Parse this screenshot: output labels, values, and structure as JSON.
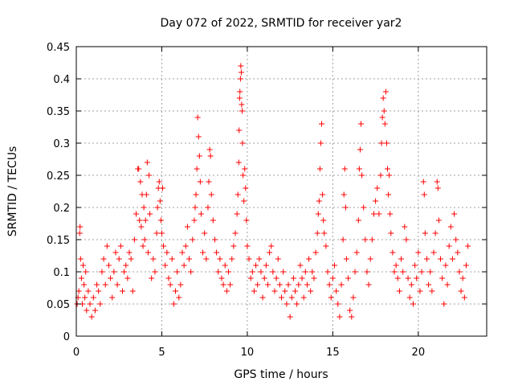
{
  "chart_data": {
    "type": "scatter",
    "title": "Day 072 of 2022, SRMTID for receiver yar2",
    "xlabel": "GPS time / hours",
    "ylabel": "SRMTID / TECUs",
    "xlim": [
      0,
      24
    ],
    "ylim": [
      0,
      0.45
    ],
    "x_ticks": [
      0,
      5,
      10,
      15,
      20
    ],
    "x_tick_labels": [
      "0",
      "5",
      "10",
      "15",
      "20"
    ],
    "y_ticks": [
      0,
      0.05,
      0.1,
      0.15,
      0.2,
      0.25,
      0.3,
      0.35,
      0.4,
      0.45
    ],
    "y_tick_labels": [
      "0",
      "0.05",
      "0.1",
      "0.15",
      "0.2",
      "0.25",
      "0.3",
      "0.35",
      "0.4",
      "0.45"
    ],
    "grid": true,
    "marker": "plus",
    "color": "#ff0000",
    "series": [
      {
        "name": "SRMTID",
        "points": [
          [
            0.05,
            0.05
          ],
          [
            0.1,
            0.06
          ],
          [
            0.15,
            0.07
          ],
          [
            0.2,
            0.16
          ],
          [
            0.22,
            0.17
          ],
          [
            0.25,
            0.12
          ],
          [
            0.3,
            0.09
          ],
          [
            0.35,
            0.05
          ],
          [
            0.4,
            0.11
          ],
          [
            0.45,
            0.08
          ],
          [
            0.5,
            0.06
          ],
          [
            0.55,
            0.1
          ],
          [
            0.6,
            0.04
          ],
          [
            0.7,
            0.07
          ],
          [
            0.8,
            0.05
          ],
          [
            0.9,
            0.03
          ],
          [
            1.0,
            0.06
          ],
          [
            1.1,
            0.04
          ],
          [
            1.2,
            0.08
          ],
          [
            1.3,
            0.07
          ],
          [
            1.4,
            0.05
          ],
          [
            1.5,
            0.1
          ],
          [
            1.6,
            0.12
          ],
          [
            1.7,
            0.08
          ],
          [
            1.8,
            0.14
          ],
          [
            1.9,
            0.11
          ],
          [
            2.0,
            0.09
          ],
          [
            2.1,
            0.06
          ],
          [
            2.2,
            0.1
          ],
          [
            2.3,
            0.13
          ],
          [
            2.4,
            0.08
          ],
          [
            2.5,
            0.12
          ],
          [
            2.6,
            0.14
          ],
          [
            2.7,
            0.07
          ],
          [
            2.8,
            0.1
          ],
          [
            2.9,
            0.11
          ],
          [
            3.0,
            0.09
          ],
          [
            3.1,
            0.13
          ],
          [
            3.2,
            0.12
          ],
          [
            3.3,
            0.07
          ],
          [
            3.4,
            0.15
          ],
          [
            3.5,
            0.19
          ],
          [
            3.6,
            0.26
          ],
          [
            3.65,
            0.26
          ],
          [
            3.7,
            0.18
          ],
          [
            3.75,
            0.24
          ],
          [
            3.8,
            0.17
          ],
          [
            3.85,
            0.22
          ],
          [
            3.9,
            0.14
          ],
          [
            3.95,
            0.2
          ],
          [
            4.0,
            0.15
          ],
          [
            4.05,
            0.18
          ],
          [
            4.1,
            0.22
          ],
          [
            4.15,
            0.27
          ],
          [
            4.2,
            0.13
          ],
          [
            4.25,
            0.25
          ],
          [
            4.3,
            0.19
          ],
          [
            4.4,
            0.09
          ],
          [
            4.5,
            0.12
          ],
          [
            4.6,
            0.1
          ],
          [
            4.7,
            0.16
          ],
          [
            4.75,
            0.2
          ],
          [
            4.8,
            0.23
          ],
          [
            4.85,
            0.24
          ],
          [
            4.9,
            0.21
          ],
          [
            4.95,
            0.18
          ],
          [
            5.0,
            0.16
          ],
          [
            5.05,
            0.23
          ],
          [
            5.1,
            0.14
          ],
          [
            5.2,
            0.11
          ],
          [
            5.3,
            0.13
          ],
          [
            5.4,
            0.09
          ],
          [
            5.5,
            0.08
          ],
          [
            5.6,
            0.12
          ],
          [
            5.7,
            0.05
          ],
          [
            5.8,
            0.07
          ],
          [
            5.9,
            0.1
          ],
          [
            6.0,
            0.06
          ],
          [
            6.1,
            0.08
          ],
          [
            6.2,
            0.13
          ],
          [
            6.3,
            0.11
          ],
          [
            6.4,
            0.14
          ],
          [
            6.5,
            0.17
          ],
          [
            6.6,
            0.12
          ],
          [
            6.7,
            0.1
          ],
          [
            6.8,
            0.15
          ],
          [
            6.9,
            0.18
          ],
          [
            6.95,
            0.2
          ],
          [
            7.0,
            0.22
          ],
          [
            7.05,
            0.26
          ],
          [
            7.1,
            0.34
          ],
          [
            7.15,
            0.31
          ],
          [
            7.2,
            0.28
          ],
          [
            7.25,
            0.24
          ],
          [
            7.3,
            0.19
          ],
          [
            7.4,
            0.13
          ],
          [
            7.5,
            0.16
          ],
          [
            7.6,
            0.12
          ],
          [
            7.7,
            0.2
          ],
          [
            7.75,
            0.24
          ],
          [
            7.8,
            0.29
          ],
          [
            7.85,
            0.28
          ],
          [
            7.9,
            0.22
          ],
          [
            8.0,
            0.18
          ],
          [
            8.1,
            0.15
          ],
          [
            8.2,
            0.13
          ],
          [
            8.3,
            0.1
          ],
          [
            8.4,
            0.12
          ],
          [
            8.5,
            0.09
          ],
          [
            8.6,
            0.08
          ],
          [
            8.7,
            0.11
          ],
          [
            8.8,
            0.07
          ],
          [
            8.9,
            0.1
          ],
          [
            9.0,
            0.08
          ],
          [
            9.1,
            0.12
          ],
          [
            9.2,
            0.14
          ],
          [
            9.3,
            0.16
          ],
          [
            9.4,
            0.19
          ],
          [
            9.45,
            0.22
          ],
          [
            9.5,
            0.27
          ],
          [
            9.52,
            0.32
          ],
          [
            9.55,
            0.37
          ],
          [
            9.57,
            0.38
          ],
          [
            9.6,
            0.4
          ],
          [
            9.62,
            0.42
          ],
          [
            9.65,
            0.41
          ],
          [
            9.67,
            0.36
          ],
          [
            9.7,
            0.35
          ],
          [
            9.72,
            0.3
          ],
          [
            9.75,
            0.25
          ],
          [
            9.8,
            0.21
          ],
          [
            9.85,
            0.26
          ],
          [
            9.9,
            0.23
          ],
          [
            9.95,
            0.18
          ],
          [
            10.0,
            0.14
          ],
          [
            10.1,
            0.12
          ],
          [
            10.2,
            0.09
          ],
          [
            10.3,
            0.1
          ],
          [
            10.4,
            0.07
          ],
          [
            10.5,
            0.11
          ],
          [
            10.6,
            0.08
          ],
          [
            10.7,
            0.12
          ],
          [
            10.8,
            0.1
          ],
          [
            10.9,
            0.06
          ],
          [
            11.0,
            0.09
          ],
          [
            11.1,
            0.11
          ],
          [
            11.2,
            0.08
          ],
          [
            11.3,
            0.13
          ],
          [
            11.4,
            0.14
          ],
          [
            11.5,
            0.1
          ],
          [
            11.6,
            0.07
          ],
          [
            11.7,
            0.09
          ],
          [
            11.8,
            0.12
          ],
          [
            11.9,
            0.08
          ],
          [
            12.0,
            0.06
          ],
          [
            12.1,
            0.1
          ],
          [
            12.2,
            0.07
          ],
          [
            12.3,
            0.05
          ],
          [
            12.4,
            0.08
          ],
          [
            12.5,
            0.03
          ],
          [
            12.6,
            0.06
          ],
          [
            12.7,
            0.09
          ],
          [
            12.8,
            0.07
          ],
          [
            12.9,
            0.05
          ],
          [
            13.0,
            0.08
          ],
          [
            13.1,
            0.11
          ],
          [
            13.2,
            0.09
          ],
          [
            13.3,
            0.06
          ],
          [
            13.4,
            0.1
          ],
          [
            13.5,
            0.08
          ],
          [
            13.6,
            0.12
          ],
          [
            13.7,
            0.07
          ],
          [
            13.8,
            0.1
          ],
          [
            13.9,
            0.09
          ],
          [
            14.0,
            0.13
          ],
          [
            14.1,
            0.16
          ],
          [
            14.15,
            0.19
          ],
          [
            14.2,
            0.21
          ],
          [
            14.25,
            0.26
          ],
          [
            14.3,
            0.3
          ],
          [
            14.35,
            0.33
          ],
          [
            14.4,
            0.22
          ],
          [
            14.45,
            0.18
          ],
          [
            14.5,
            0.16
          ],
          [
            14.6,
            0.14
          ],
          [
            14.7,
            0.1
          ],
          [
            14.8,
            0.08
          ],
          [
            14.9,
            0.06
          ],
          [
            15.0,
            0.09
          ],
          [
            15.1,
            0.11
          ],
          [
            15.2,
            0.07
          ],
          [
            15.3,
            0.05
          ],
          [
            15.4,
            0.03
          ],
          [
            15.5,
            0.08
          ],
          [
            15.6,
            0.15
          ],
          [
            15.65,
            0.22
          ],
          [
            15.7,
            0.26
          ],
          [
            15.75,
            0.2
          ],
          [
            15.8,
            0.12
          ],
          [
            15.9,
            0.09
          ],
          [
            16.0,
            0.04
          ],
          [
            16.1,
            0.03
          ],
          [
            16.2,
            0.06
          ],
          [
            16.3,
            0.1
          ],
          [
            16.4,
            0.13
          ],
          [
            16.5,
            0.18
          ],
          [
            16.55,
            0.26
          ],
          [
            16.6,
            0.29
          ],
          [
            16.65,
            0.33
          ],
          [
            16.7,
            0.25
          ],
          [
            16.8,
            0.2
          ],
          [
            16.9,
            0.15
          ],
          [
            17.0,
            0.1
          ],
          [
            17.1,
            0.08
          ],
          [
            17.2,
            0.12
          ],
          [
            17.3,
            0.15
          ],
          [
            17.4,
            0.19
          ],
          [
            17.5,
            0.21
          ],
          [
            17.6,
            0.23
          ],
          [
            17.7,
            0.19
          ],
          [
            17.8,
            0.25
          ],
          [
            17.85,
            0.3
          ],
          [
            17.9,
            0.34
          ],
          [
            17.95,
            0.37
          ],
          [
            18.0,
            0.35
          ],
          [
            18.05,
            0.33
          ],
          [
            18.1,
            0.38
          ],
          [
            18.15,
            0.3
          ],
          [
            18.2,
            0.26
          ],
          [
            18.25,
            0.22
          ],
          [
            18.3,
            0.25
          ],
          [
            18.35,
            0.19
          ],
          [
            18.4,
            0.16
          ],
          [
            18.5,
            0.13
          ],
          [
            18.6,
            0.1
          ],
          [
            18.7,
            0.11
          ],
          [
            18.8,
            0.09
          ],
          [
            18.9,
            0.07
          ],
          [
            19.0,
            0.12
          ],
          [
            19.1,
            0.1
          ],
          [
            19.2,
            0.17
          ],
          [
            19.3,
            0.15
          ],
          [
            19.4,
            0.09
          ],
          [
            19.5,
            0.06
          ],
          [
            19.6,
            0.08
          ],
          [
            19.7,
            0.05
          ],
          [
            19.8,
            0.11
          ],
          [
            19.9,
            0.09
          ],
          [
            20.0,
            0.13
          ],
          [
            20.1,
            0.07
          ],
          [
            20.2,
            0.1
          ],
          [
            20.3,
            0.24
          ],
          [
            20.35,
            0.22
          ],
          [
            20.4,
            0.16
          ],
          [
            20.5,
            0.12
          ],
          [
            20.6,
            0.08
          ],
          [
            20.7,
            0.1
          ],
          [
            20.8,
            0.07
          ],
          [
            20.9,
            0.13
          ],
          [
            21.0,
            0.16
          ],
          [
            21.1,
            0.24
          ],
          [
            21.15,
            0.23
          ],
          [
            21.2,
            0.18
          ],
          [
            21.3,
            0.12
          ],
          [
            21.4,
            0.09
          ],
          [
            21.5,
            0.05
          ],
          [
            21.6,
            0.11
          ],
          [
            21.7,
            0.08
          ],
          [
            21.8,
            0.14
          ],
          [
            21.9,
            0.17
          ],
          [
            22.0,
            0.12
          ],
          [
            22.1,
            0.19
          ],
          [
            22.2,
            0.15
          ],
          [
            22.3,
            0.13
          ],
          [
            22.4,
            0.1
          ],
          [
            22.5,
            0.07
          ],
          [
            22.6,
            0.09
          ],
          [
            22.7,
            0.06
          ],
          [
            22.8,
            0.11
          ],
          [
            22.9,
            0.14
          ]
        ]
      }
    ]
  }
}
